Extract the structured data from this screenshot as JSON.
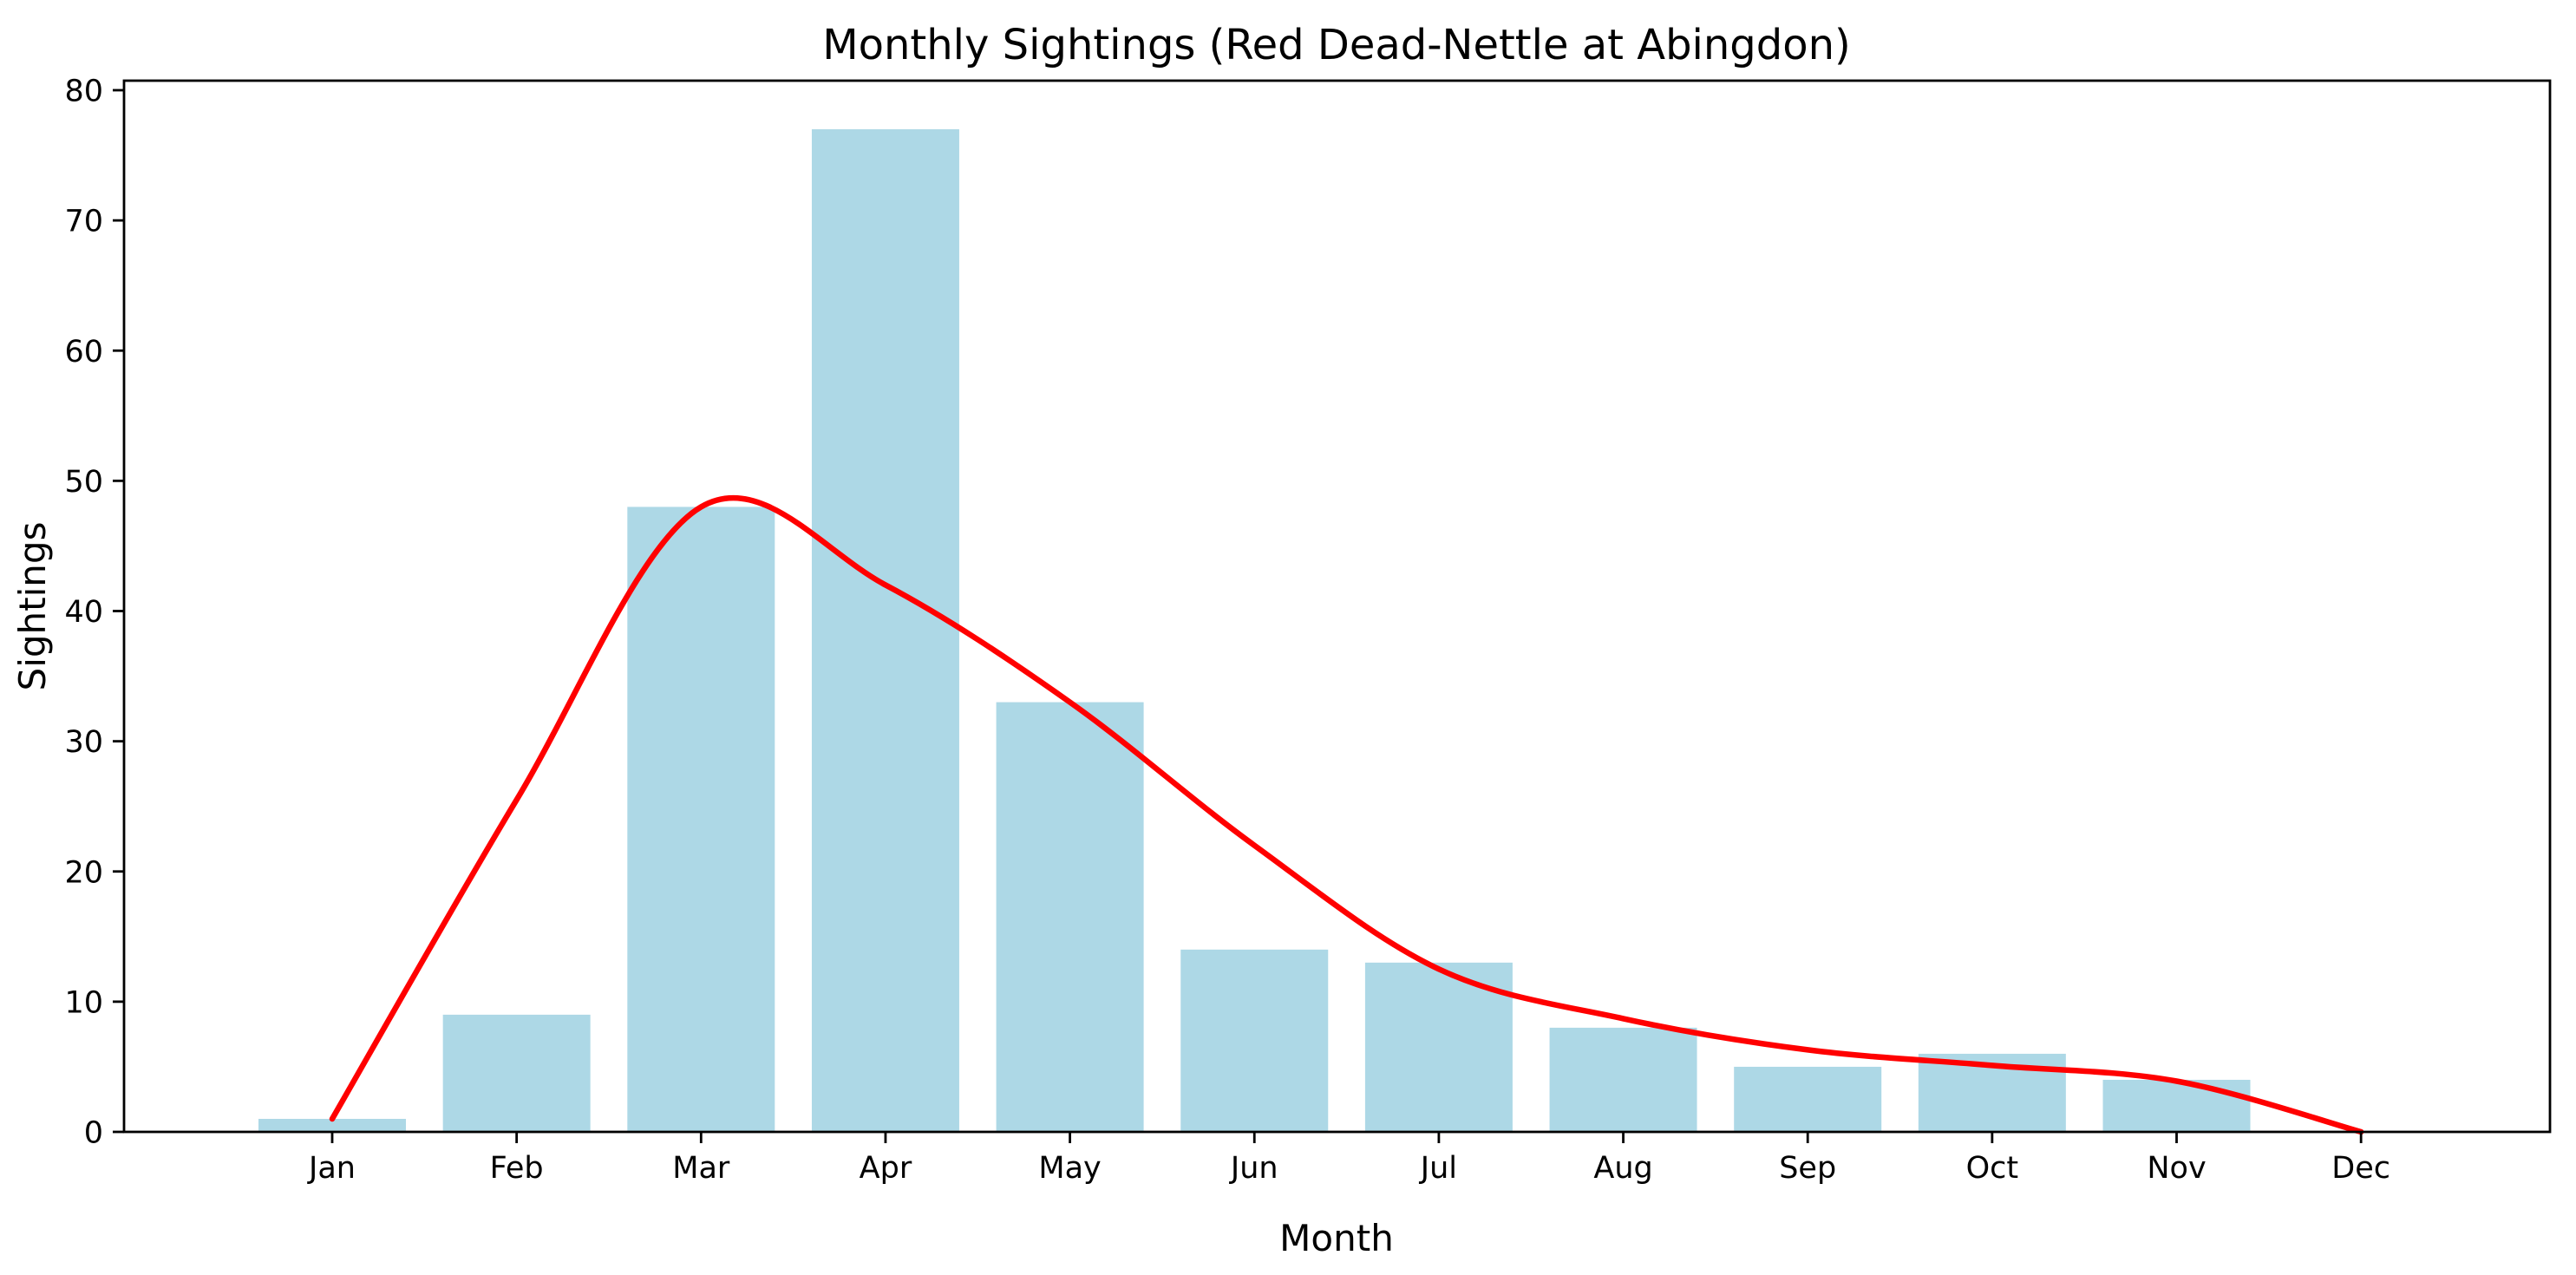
{
  "chart_data": {
    "type": "bar",
    "title": "Monthly Sightings (Red Dead-Nettle at Abingdon)",
    "xlabel": "Month",
    "ylabel": "Sightings",
    "categories": [
      "Jan",
      "Feb",
      "Mar",
      "Apr",
      "May",
      "Jun",
      "Jul",
      "Aug",
      "Sep",
      "Oct",
      "Nov",
      "Dec"
    ],
    "series": [
      {
        "name": "monthly_sightings_bars",
        "type": "bar",
        "color": "#ADD8E6",
        "values": [
          1,
          9,
          48,
          77,
          33,
          14,
          13,
          8,
          5,
          6,
          4,
          0
        ]
      },
      {
        "name": "smoothed_trend_line",
        "type": "line",
        "color": "#FF0000",
        "values": [
          1,
          25.5,
          48,
          42,
          33,
          22,
          12.5,
          8.7,
          6.3,
          5.1,
          3.9,
          0
        ]
      }
    ],
    "ylim": [
      0,
      80.7
    ],
    "yticks": [
      0,
      10,
      20,
      30,
      40,
      50,
      60,
      70,
      80
    ],
    "grid": false,
    "legend": "none",
    "axis_color": "#000000"
  }
}
